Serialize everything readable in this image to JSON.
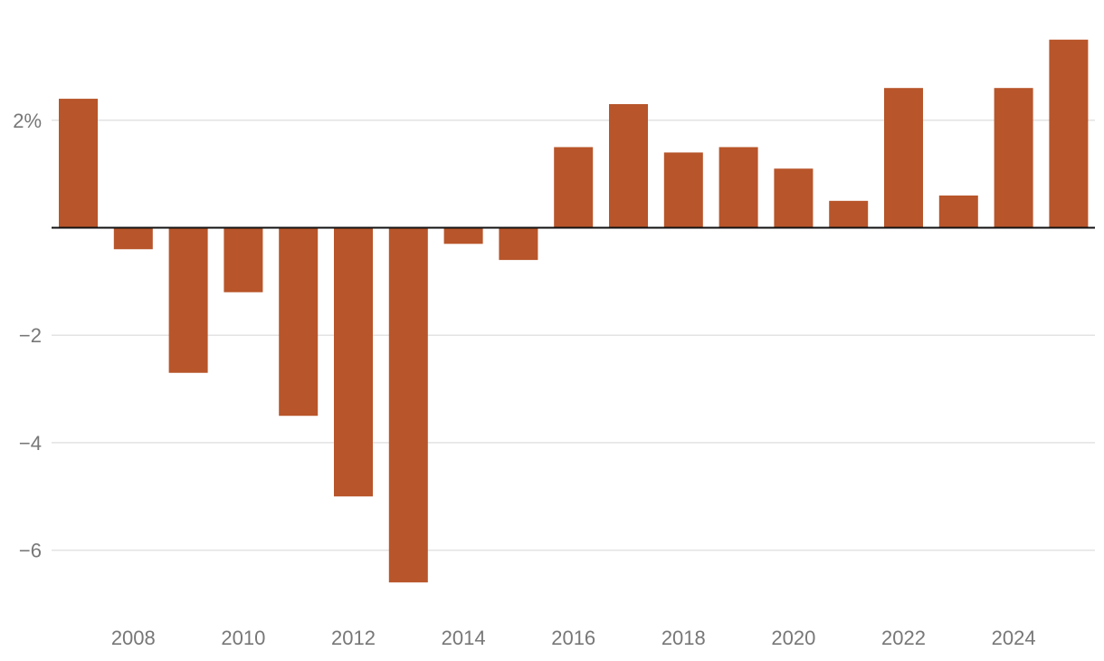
{
  "chart_data": {
    "type": "bar",
    "title": "",
    "xlabel": "",
    "ylabel": "",
    "bar_color": "#b8552a",
    "grid_color": "#e3e3e3",
    "zero_line_color": "#111111",
    "tick_color": "#777777",
    "categories": [
      2007,
      2008,
      2009,
      2010,
      2011,
      2012,
      2013,
      2014,
      2015,
      2016,
      2017,
      2018,
      2019,
      2020,
      2021,
      2022,
      2023,
      2024,
      2025
    ],
    "values": [
      2.4,
      -0.4,
      -2.7,
      -1.2,
      -3.5,
      -5.0,
      -6.6,
      -0.3,
      -0.6,
      1.5,
      2.3,
      1.4,
      1.5,
      1.1,
      0.5,
      2.6,
      0.6,
      2.6,
      3.5
    ],
    "ylim": [
      -7.0,
      4.0
    ],
    "y_ticks": [
      {
        "value": 2,
        "label": "2%"
      },
      {
        "value": -2,
        "label": "−2"
      },
      {
        "value": -4,
        "label": "−4"
      },
      {
        "value": -6,
        "label": "−6"
      }
    ],
    "x_tick_labels": [
      "2008",
      "2010",
      "2012",
      "2014",
      "2016",
      "2018",
      "2020",
      "2022",
      "2024"
    ]
  }
}
